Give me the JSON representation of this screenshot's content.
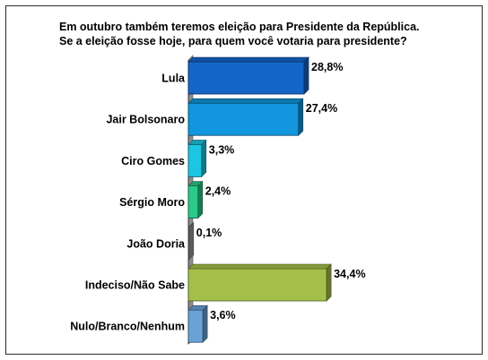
{
  "title_lines": [
    "Em outubro também teremos eleição para Presidente da República.",
    "Se a eleição fosse hoje, para quem você votaria para presidente?"
  ],
  "chart_data": {
    "type": "bar",
    "orientation": "horizontal",
    "style": "3d",
    "title": "Em outubro também teremos eleição para Presidente da República. Se a eleição fosse hoje, para quem você votaria para presidente?",
    "xlabel": "",
    "ylabel": "",
    "grid": false,
    "legend": "none",
    "xlim": [
      0,
      40
    ],
    "categories": [
      "Lula",
      "Jair Bolsonaro",
      "Ciro Gomes",
      "Sérgio Moro",
      "João Doria",
      "Indeciso/Não Sabe",
      "Nulo/Branco/Nenhum"
    ],
    "values": [
      28.8,
      27.4,
      3.3,
      2.4,
      0.1,
      34.4,
      3.6
    ],
    "value_labels": [
      "28,8%",
      "27,4%",
      "3,3%",
      "2,4%",
      "0,1%",
      "34,4%",
      "3,6%"
    ],
    "colors": [
      "#1565c8",
      "#1296dd",
      "#1cc6e2",
      "#2bc98a",
      "#9a9a9a",
      "#a5c04a",
      "#6aa2d8"
    ]
  }
}
